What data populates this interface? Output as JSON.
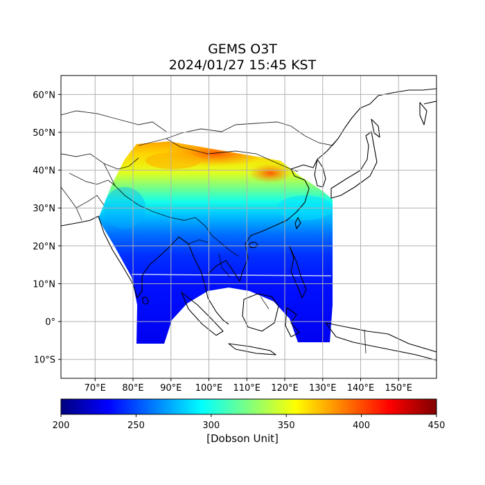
{
  "title": {
    "line1": "GEMS O3T",
    "line2": "2024/01/27 15:45 KST"
  },
  "map": {
    "lon_range": [
      61,
      160
    ],
    "lat_range": [
      -15,
      65
    ],
    "lon_ticks": [
      {
        "value": 70,
        "label": "70°E"
      },
      {
        "value": 80,
        "label": "80°E"
      },
      {
        "value": 90,
        "label": "90°E"
      },
      {
        "value": 100,
        "label": "100°E"
      },
      {
        "value": 110,
        "label": "110°E"
      },
      {
        "value": 120,
        "label": "120°E"
      },
      {
        "value": 130,
        "label": "130°E"
      },
      {
        "value": 140,
        "label": "140°E"
      },
      {
        "value": 150,
        "label": "150°E"
      }
    ],
    "lat_ticks": [
      {
        "value": 60,
        "label": "60°N"
      },
      {
        "value": 50,
        "label": "50°N"
      },
      {
        "value": 40,
        "label": "40°N"
      },
      {
        "value": 30,
        "label": "30°N"
      },
      {
        "value": 20,
        "label": "20°N"
      },
      {
        "value": 10,
        "label": "10°N"
      },
      {
        "value": 0,
        "label": "0°"
      },
      {
        "value": -10,
        "label": "10°S"
      }
    ],
    "grid": true
  },
  "colorbar": {
    "min": 200,
    "max": 450,
    "ticks": [
      {
        "value": 200,
        "label": "200"
      },
      {
        "value": 250,
        "label": "250"
      },
      {
        "value": 300,
        "label": "300"
      },
      {
        "value": 350,
        "label": "350"
      },
      {
        "value": 400,
        "label": "400"
      },
      {
        "value": 450,
        "label": "450"
      }
    ],
    "label": "[Dobson Unit]",
    "colormap": "jet"
  },
  "colors": {
    "jet": [
      "#00007f",
      "#0000ff",
      "#007fff",
      "#00ffff",
      "#7fff7f",
      "#ffff00",
      "#ff7f00",
      "#ff0000",
      "#7f0000"
    ]
  }
}
